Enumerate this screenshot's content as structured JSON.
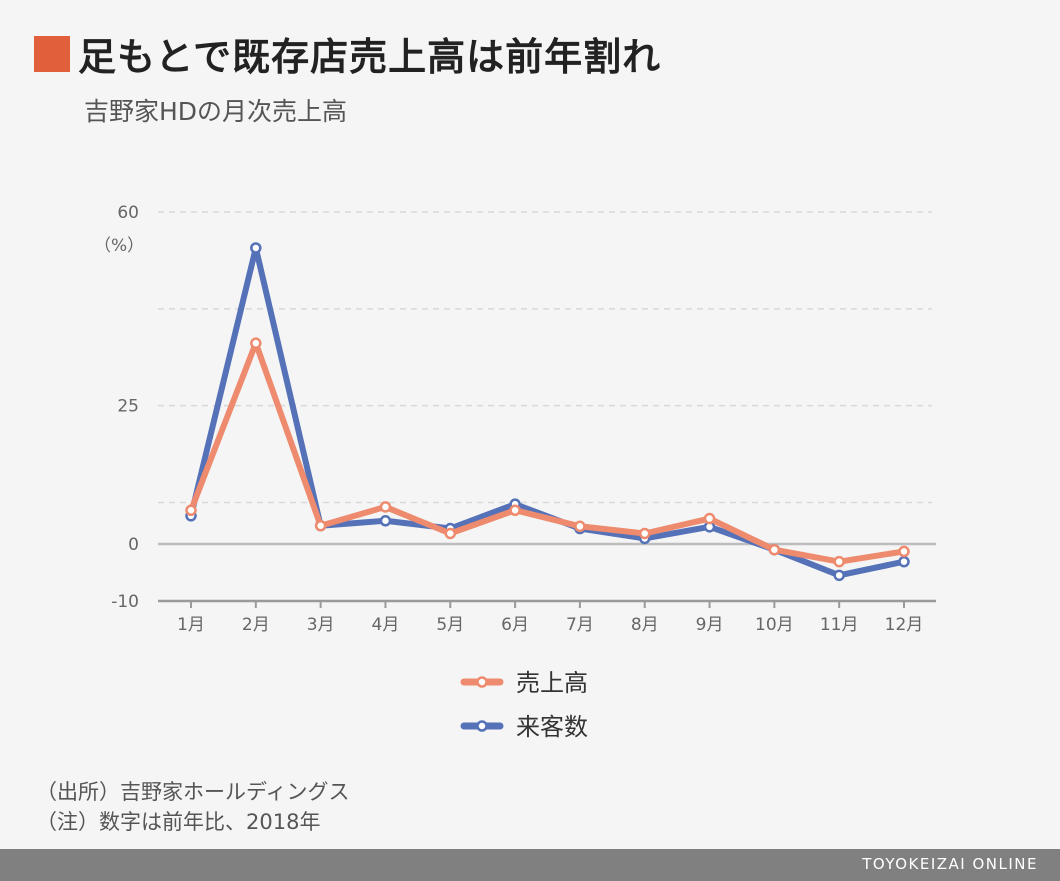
{
  "header": {
    "title": "足もとで既存店売上高は前年割れ",
    "subtitle": "吉野家HDの月次売上高",
    "accent_color": "#e25f3c"
  },
  "notes": {
    "source": "（出所）吉野家ホールディングス",
    "remark": "（注）数字は前年比、2018年"
  },
  "footer": {
    "brand": "TOYOKEIZAI ONLINE"
  },
  "chart_data": {
    "type": "line",
    "categories": [
      "1月",
      "2月",
      "3月",
      "4月",
      "5月",
      "6月",
      "7月",
      "8月",
      "9月",
      "10月",
      "11月",
      "12月"
    ],
    "y_tick_labels": [
      "60",
      "25",
      "0",
      "-10"
    ],
    "y_unit": "（%）",
    "ylim": [
      -10,
      60
    ],
    "grid": true,
    "legend_position": "bottom",
    "series": [
      {
        "name": "売上高",
        "color": "#ee8b6e",
        "values": [
          6.1,
          36.3,
          3.3,
          6.7,
          1.9,
          6.1,
          3.2,
          1.9,
          4.6,
          -1.0,
          -3.1,
          -1.3
        ]
      },
      {
        "name": "来客数",
        "color": "#5572b8",
        "values": [
          5.1,
          53.5,
          3.3,
          4.2,
          2.8,
          7.2,
          2.8,
          1.0,
          3.1,
          -1.0,
          -5.5,
          -3.1
        ]
      }
    ]
  }
}
